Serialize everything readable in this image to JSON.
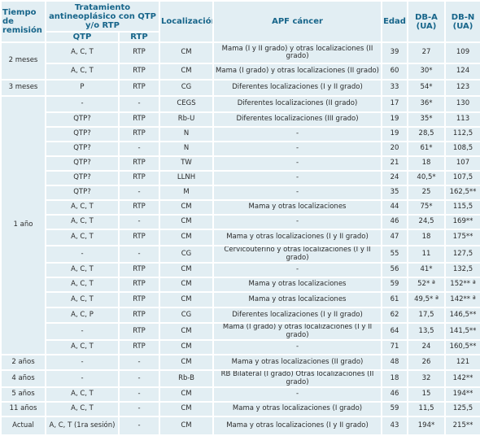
{
  "headers": {
    "tiempo": "Tiempo de remisión",
    "tratamiento": "Tratamiento antineoplásico con QTP y/o RTP",
    "localizacion": "Localización",
    "apf": "APF cáncer",
    "edad": "Edad",
    "dba": "DB-A (UA)",
    "dbn": "DB-N (UA)",
    "qtp": "QTP",
    "rtp": "RTP"
  },
  "groups": [
    {
      "label": "2 meses",
      "rows": [
        {
          "qtp": "A, C, T",
          "rtp": "RTP",
          "loc": "CM",
          "apf": "Mama (I y II grado) y otras localizaciones (II grado)",
          "edad": "39",
          "dba": "27",
          "dbn": "109"
        },
        {
          "qtp": "A, C, T",
          "rtp": "RTP",
          "loc": "CM",
          "apf": "Mama (I grado) y otras localizaciones (II grado)",
          "edad": "60",
          "dba": "30*",
          "dbn": "124"
        }
      ]
    },
    {
      "label": "3 meses",
      "rows": [
        {
          "qtp": "P",
          "rtp": "RTP",
          "loc": "CG",
          "apf": "Diferentes localizaciones (I y II grado)",
          "edad": "33",
          "dba": "54*",
          "dbn": "123"
        }
      ]
    },
    {
      "label": "1 año",
      "rows": [
        {
          "qtp": "-",
          "rtp": "-",
          "loc": "CEGS",
          "apf": "Diferentes localizaciones (II grado)",
          "edad": "17",
          "dba": "36*",
          "dbn": "130"
        },
        {
          "qtp": "QTP?",
          "rtp": "RTP",
          "loc": "Rb-U",
          "apf": "Diferentes localizaciones (III grado)",
          "edad": "19",
          "dba": "35*",
          "dbn": "113"
        },
        {
          "qtp": "QTP?",
          "rtp": "RTP",
          "loc": "N",
          "apf": "-",
          "edad": "19",
          "dba": "28,5",
          "dbn": "112,5"
        },
        {
          "qtp": "QTP?",
          "rtp": "-",
          "loc": "N",
          "apf": "-",
          "edad": "20",
          "dba": "61*",
          "dbn": "108,5"
        },
        {
          "qtp": "QTP?",
          "rtp": "RTP",
          "loc": "TW",
          "apf": "-",
          "edad": "21",
          "dba": "18",
          "dbn": "107"
        },
        {
          "qtp": "QTP?",
          "rtp": "RTP",
          "loc": "LLNH",
          "apf": "-",
          "edad": "24",
          "dba": "40,5*",
          "dbn": "107,5"
        },
        {
          "qtp": "QTP?",
          "rtp": "-",
          "loc": "M",
          "apf": "-",
          "edad": "35",
          "dba": "25",
          "dbn": "162,5**"
        },
        {
          "qtp": "A, C, T",
          "rtp": "RTP",
          "loc": "CM",
          "apf": "Mama y otras localizaciones",
          "edad": "44",
          "dba": "75*",
          "dbn": "115,5"
        },
        {
          "qtp": "A, C, T",
          "rtp": "-",
          "loc": "CM",
          "apf": "-",
          "edad": "46",
          "dba": "24,5",
          "dbn": "169**"
        },
        {
          "qtp": "A, C, T",
          "rtp": "RTP",
          "loc": "CM",
          "apf": "Mama y otras localizaciones (I y II grado)",
          "edad": "47",
          "dba": "18",
          "dbn": "175**"
        },
        {
          "qtp": "-",
          "rtp": "-",
          "loc": "CG",
          "apf": "Cervicouterino y otras localizaciones (I y II grado)",
          "edad": "55",
          "dba": "11",
          "dbn": "127,5"
        },
        {
          "qtp": "A, C, T",
          "rtp": "RTP",
          "loc": "CM",
          "apf": "-",
          "edad": "56",
          "dba": "41*",
          "dbn": "132,5"
        },
        {
          "qtp": "A, C, T",
          "rtp": "RTP",
          "loc": "CM",
          "apf": "Mama y otras localizaciones",
          "edad": "59",
          "dba": "52* ª",
          "dbn": "152** ª"
        },
        {
          "qtp": "A, C, T",
          "rtp": "RTP",
          "loc": "CM",
          "apf": "Mama y otras localizaciones",
          "edad": "61",
          "dba": "49,5* ª",
          "dbn": "142** ª"
        },
        {
          "qtp": "A, C, P",
          "rtp": "RTP",
          "loc": "CG",
          "apf": "Diferentes localizaciones (I y II grado)",
          "edad": "62",
          "dba": "17,5",
          "dbn": "146,5**"
        },
        {
          "qtp": "-",
          "rtp": "RTP",
          "loc": "CM",
          "apf": "Mama (I grado) y otras localizaciones (I y II grado)",
          "edad": "64",
          "dba": "13,5",
          "dbn": "141,5**"
        },
        {
          "qtp": "A, C, T",
          "rtp": "RTP",
          "loc": "CM",
          "apf": "-",
          "edad": "71",
          "dba": "24",
          "dbn": "160,5**"
        }
      ]
    },
    {
      "label": "2 años",
      "rows": [
        {
          "qtp": "-",
          "rtp": "-",
          "loc": "CM",
          "apf": "Mama y otras localizaciones (II grado)",
          "edad": "48",
          "dba": "26",
          "dbn": "121"
        }
      ]
    },
    {
      "label": "4 años",
      "rows": [
        {
          "qtp": "-",
          "rtp": "-",
          "loc": "Rb-B",
          "apf": "RB Bilateral (I grado) Otras localizaciones (II grado)",
          "edad": "18",
          "dba": "32",
          "dbn": "142**"
        }
      ]
    },
    {
      "label": "5 años",
      "rows": [
        {
          "qtp": "A, C, T",
          "rtp": "-",
          "loc": "CM",
          "apf": "-",
          "edad": "46",
          "dba": "15",
          "dbn": "194**"
        }
      ]
    },
    {
      "label": "11 años",
      "rows": [
        {
          "qtp": "A, C, T",
          "rtp": "-",
          "loc": "CM",
          "apf": "Mama y otras localizaciones (I grado)",
          "edad": "59",
          "dba": "11,5",
          "dbn": "125,5"
        }
      ]
    },
    {
      "label": "Actual",
      "rows": [
        {
          "qtp": "A, C, T (1ra sesión)",
          "rtp": "-",
          "loc": "CM",
          "apf": "Mama y otras localizaciones (I y II grado)",
          "edad": "43",
          "dba": "194*",
          "dbn": "215**"
        }
      ]
    }
  ]
}
